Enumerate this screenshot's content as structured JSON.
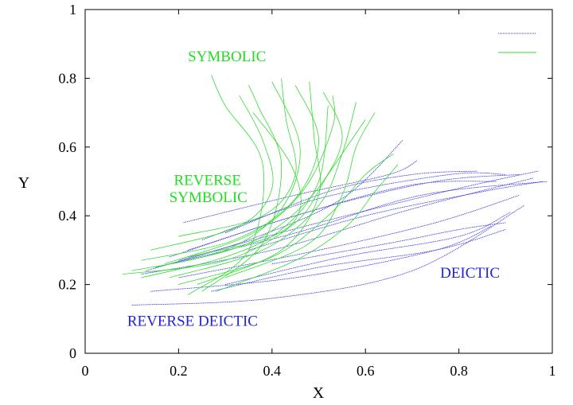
{
  "chart_data": {
    "type": "line",
    "title": "",
    "xlabel": "X",
    "ylabel": "Y",
    "xlim": [
      0,
      1
    ],
    "ylim": [
      0,
      1
    ],
    "xticks": [
      "0",
      "0.2",
      "0.4",
      "0.6",
      "0.8",
      "1"
    ],
    "yticks": [
      "0",
      "0.2",
      "0.4",
      "0.6",
      "0.8",
      "1"
    ],
    "legend_placement": "top-right",
    "legend": [
      {
        "name": "",
        "color": "#3333dd"
      },
      {
        "name": "",
        "color": "#33dd33"
      }
    ],
    "annotations": [
      {
        "text": "SYMBOLIC",
        "x": 0.22,
        "y": 0.85,
        "color": "#22dd22"
      },
      {
        "text": "REVERSE",
        "x": 0.19,
        "y": 0.49,
        "color": "#22dd22"
      },
      {
        "text": "SYMBOLIC",
        "x": 0.18,
        "y": 0.44,
        "color": "#22dd22"
      },
      {
        "text": "DEICTIC",
        "x": 0.76,
        "y": 0.22,
        "color": "#2222dd"
      },
      {
        "text": "REVERSE DEICTIC",
        "x": 0.09,
        "y": 0.08,
        "color": "#2222dd"
      }
    ],
    "series": [
      {
        "name": "deictic",
        "color": "#3333dd",
        "lines": [
          [
            [
              0.1,
              0.14
            ],
            [
              0.4,
              0.16
            ],
            [
              0.7,
              0.24
            ],
            [
              0.94,
              0.43
            ]
          ],
          [
            [
              0.14,
              0.18
            ],
            [
              0.45,
              0.22
            ],
            [
              0.75,
              0.3
            ],
            [
              0.87,
              0.37
            ]
          ],
          [
            [
              0.12,
              0.23
            ],
            [
              0.4,
              0.3
            ],
            [
              0.7,
              0.42
            ],
            [
              0.96,
              0.51
            ]
          ],
          [
            [
              0.15,
              0.25
            ],
            [
              0.45,
              0.35
            ],
            [
              0.72,
              0.46
            ],
            [
              0.99,
              0.5
            ]
          ],
          [
            [
              0.2,
              0.27
            ],
            [
              0.5,
              0.38
            ],
            [
              0.8,
              0.48
            ],
            [
              0.97,
              0.53
            ]
          ],
          [
            [
              0.22,
              0.3
            ],
            [
              0.5,
              0.42
            ],
            [
              0.75,
              0.5
            ],
            [
              0.93,
              0.52
            ]
          ],
          [
            [
              0.25,
              0.33
            ],
            [
              0.5,
              0.45
            ],
            [
              0.78,
              0.52
            ],
            [
              0.9,
              0.52
            ]
          ],
          [
            [
              0.3,
              0.35
            ],
            [
              0.52,
              0.47
            ],
            [
              0.7,
              0.52
            ],
            [
              0.84,
              0.53
            ]
          ],
          [
            [
              0.13,
              0.24
            ],
            [
              0.35,
              0.33
            ],
            [
              0.55,
              0.45
            ],
            [
              0.68,
              0.62
            ]
          ],
          [
            [
              0.21,
              0.38
            ],
            [
              0.45,
              0.46
            ],
            [
              0.65,
              0.52
            ],
            [
              0.71,
              0.56
            ]
          ],
          [
            [
              0.3,
              0.2
            ],
            [
              0.55,
              0.28
            ],
            [
              0.8,
              0.34
            ],
            [
              0.91,
              0.41
            ]
          ],
          [
            [
              0.27,
              0.18
            ],
            [
              0.5,
              0.25
            ],
            [
              0.75,
              0.3
            ],
            [
              0.9,
              0.36
            ]
          ],
          [
            [
              0.18,
              0.28
            ],
            [
              0.45,
              0.4
            ],
            [
              0.7,
              0.49
            ],
            [
              0.88,
              0.5
            ]
          ],
          [
            [
              0.35,
              0.3
            ],
            [
              0.6,
              0.4
            ],
            [
              0.85,
              0.47
            ],
            [
              0.98,
              0.5
            ]
          ],
          [
            [
              0.4,
              0.26
            ],
            [
              0.65,
              0.32
            ],
            [
              0.8,
              0.36
            ],
            [
              0.9,
              0.38
            ]
          ],
          [
            [
              0.2,
              0.22
            ],
            [
              0.5,
              0.3
            ],
            [
              0.75,
              0.38
            ],
            [
              0.93,
              0.46
            ]
          ]
        ]
      },
      {
        "name": "symbolic",
        "color": "#33dd33",
        "lines": [
          [
            [
              0.22,
              0.17
            ],
            [
              0.35,
              0.3
            ],
            [
              0.38,
              0.55
            ],
            [
              0.3,
              0.72
            ],
            [
              0.27,
              0.81
            ]
          ],
          [
            [
              0.25,
              0.18
            ],
            [
              0.38,
              0.32
            ],
            [
              0.42,
              0.55
            ],
            [
              0.37,
              0.72
            ],
            [
              0.35,
              0.78
            ]
          ],
          [
            [
              0.1,
              0.24
            ],
            [
              0.3,
              0.3
            ],
            [
              0.42,
              0.42
            ],
            [
              0.46,
              0.6
            ],
            [
              0.4,
              0.79
            ]
          ],
          [
            [
              0.12,
              0.27
            ],
            [
              0.32,
              0.33
            ],
            [
              0.45,
              0.45
            ],
            [
              0.5,
              0.62
            ],
            [
              0.45,
              0.78
            ]
          ],
          [
            [
              0.15,
              0.25
            ],
            [
              0.35,
              0.32
            ],
            [
              0.48,
              0.45
            ],
            [
              0.55,
              0.62
            ],
            [
              0.51,
              0.76
            ]
          ],
          [
            [
              0.18,
              0.22
            ],
            [
              0.38,
              0.3
            ],
            [
              0.5,
              0.43
            ],
            [
              0.55,
              0.58
            ],
            [
              0.58,
              0.73
            ]
          ],
          [
            [
              0.08,
              0.23
            ],
            [
              0.3,
              0.27
            ],
            [
              0.45,
              0.38
            ],
            [
              0.52,
              0.52
            ],
            [
              0.6,
              0.68
            ]
          ],
          [
            [
              0.2,
              0.2
            ],
            [
              0.4,
              0.28
            ],
            [
              0.52,
              0.4
            ],
            [
              0.6,
              0.52
            ],
            [
              0.66,
              0.58
            ]
          ],
          [
            [
              0.28,
              0.18
            ],
            [
              0.45,
              0.27
            ],
            [
              0.56,
              0.37
            ],
            [
              0.62,
              0.47
            ],
            [
              0.67,
              0.55
            ]
          ],
          [
            [
              0.14,
              0.3
            ],
            [
              0.33,
              0.37
            ],
            [
              0.4,
              0.48
            ],
            [
              0.38,
              0.62
            ],
            [
              0.33,
              0.75
            ]
          ],
          [
            [
              0.2,
              0.34
            ],
            [
              0.38,
              0.4
            ],
            [
              0.45,
              0.52
            ],
            [
              0.43,
              0.68
            ],
            [
              0.42,
              0.8
            ]
          ],
          [
            [
              0.12,
              0.22
            ],
            [
              0.3,
              0.28
            ],
            [
              0.42,
              0.36
            ],
            [
              0.5,
              0.5
            ],
            [
              0.52,
              0.72
            ]
          ],
          [
            [
              0.24,
              0.2
            ],
            [
              0.42,
              0.3
            ],
            [
              0.5,
              0.46
            ],
            [
              0.49,
              0.63
            ],
            [
              0.48,
              0.79
            ]
          ],
          [
            [
              0.17,
              0.26
            ],
            [
              0.36,
              0.35
            ],
            [
              0.47,
              0.48
            ],
            [
              0.53,
              0.66
            ],
            [
              0.53,
              0.75
            ]
          ],
          [
            [
              0.3,
              0.22
            ],
            [
              0.48,
              0.32
            ],
            [
              0.55,
              0.46
            ],
            [
              0.58,
              0.6
            ],
            [
              0.62,
              0.7
            ]
          ],
          [
            [
              0.22,
              0.28
            ],
            [
              0.4,
              0.34
            ],
            [
              0.46,
              0.42
            ],
            [
              0.44,
              0.55
            ],
            [
              0.36,
              0.7
            ]
          ]
        ]
      }
    ]
  }
}
